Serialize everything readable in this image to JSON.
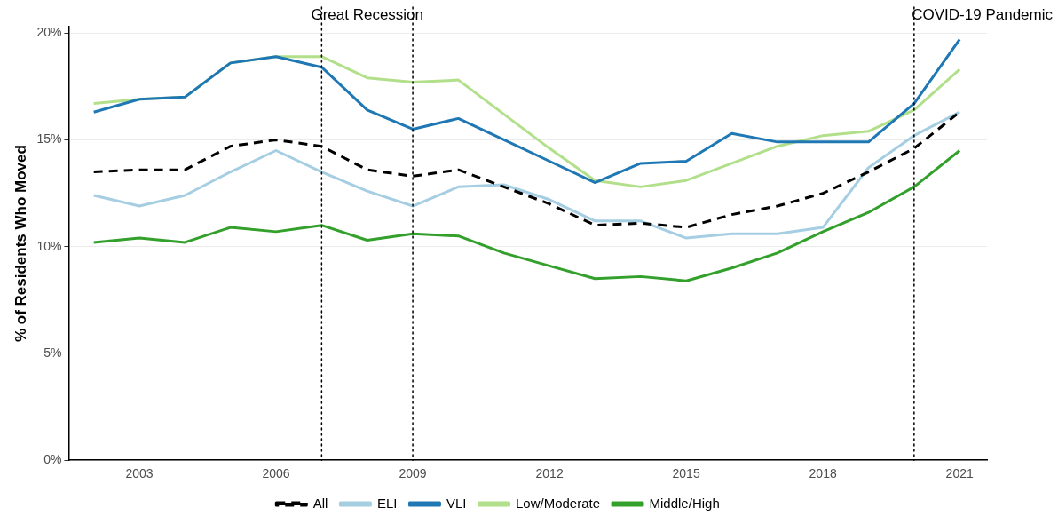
{
  "chart_data": {
    "type": "line",
    "ylabel": "% of Residents Who Moved",
    "x": [
      2002,
      2003,
      2004,
      2005,
      2006,
      2007,
      2008,
      2009,
      2010,
      2011,
      2012,
      2013,
      2014,
      2015,
      2016,
      2017,
      2018,
      2019,
      2020,
      2021
    ],
    "series": [
      {
        "name": "All",
        "color": "#000000",
        "line_style": "dashed",
        "values": [
          13.5,
          13.6,
          13.6,
          14.7,
          15.0,
          14.7,
          13.6,
          13.3,
          13.6,
          12.8,
          12.0,
          11.0,
          11.1,
          10.9,
          11.5,
          11.9,
          12.5,
          13.5,
          14.6,
          16.3
        ]
      },
      {
        "name": "ELI",
        "color": "#a6cee3",
        "values": [
          12.4,
          11.9,
          12.4,
          13.5,
          14.5,
          13.5,
          12.6,
          11.9,
          12.8,
          12.9,
          12.2,
          11.2,
          11.2,
          10.4,
          10.6,
          10.6,
          10.9,
          13.7,
          15.2,
          16.3
        ]
      },
      {
        "name": "VLI",
        "color": "#1f78b4",
        "values": [
          16.3,
          16.9,
          17.0,
          18.6,
          18.9,
          18.4,
          16.4,
          15.5,
          16.0,
          15.0,
          14.0,
          13.0,
          13.9,
          14.0,
          15.3,
          14.9,
          14.9,
          14.9,
          16.7,
          19.7
        ]
      },
      {
        "name": "Low/Moderate",
        "color": "#b2df8a",
        "values": [
          16.7,
          16.9,
          17.0,
          18.6,
          18.9,
          18.9,
          17.9,
          17.7,
          17.8,
          16.2,
          14.6,
          13.1,
          12.8,
          13.1,
          13.9,
          14.7,
          15.2,
          15.4,
          16.4,
          18.3
        ]
      },
      {
        "name": "Middle/High",
        "color": "#33a02c",
        "values": [
          10.2,
          10.4,
          10.2,
          10.9,
          10.7,
          11.0,
          10.3,
          10.6,
          10.5,
          9.7,
          9.1,
          8.5,
          8.6,
          8.4,
          9.0,
          9.7,
          10.7,
          11.6,
          12.8,
          14.5
        ]
      }
    ],
    "xlim": [
      2001.45,
      2021.6
    ],
    "xticks": [
      2003,
      2006,
      2009,
      2012,
      2015,
      2018,
      2021
    ],
    "ylim": [
      0,
      20.3
    ],
    "yticks": [
      {
        "value": 0,
        "label": "0%"
      },
      {
        "value": 5,
        "label": "5%"
      },
      {
        "value": 10,
        "label": "10%"
      },
      {
        "value": 15,
        "label": "15%"
      },
      {
        "value": 20,
        "label": "20%"
      }
    ],
    "grid": "y",
    "legend": "bottom",
    "marker": "none",
    "line_style": "solid",
    "ref_lines": [
      {
        "axis": "x",
        "value": 2007,
        "line_style": "dotted",
        "color": "#000000"
      },
      {
        "axis": "x",
        "value": 2009,
        "line_style": "dotted",
        "color": "#000000"
      },
      {
        "axis": "x",
        "value": 2020,
        "line_style": "dotted",
        "color": "#000000"
      }
    ],
    "annotations": [
      "Great Recession",
      "COVID-19 Pandemic"
    ]
  }
}
